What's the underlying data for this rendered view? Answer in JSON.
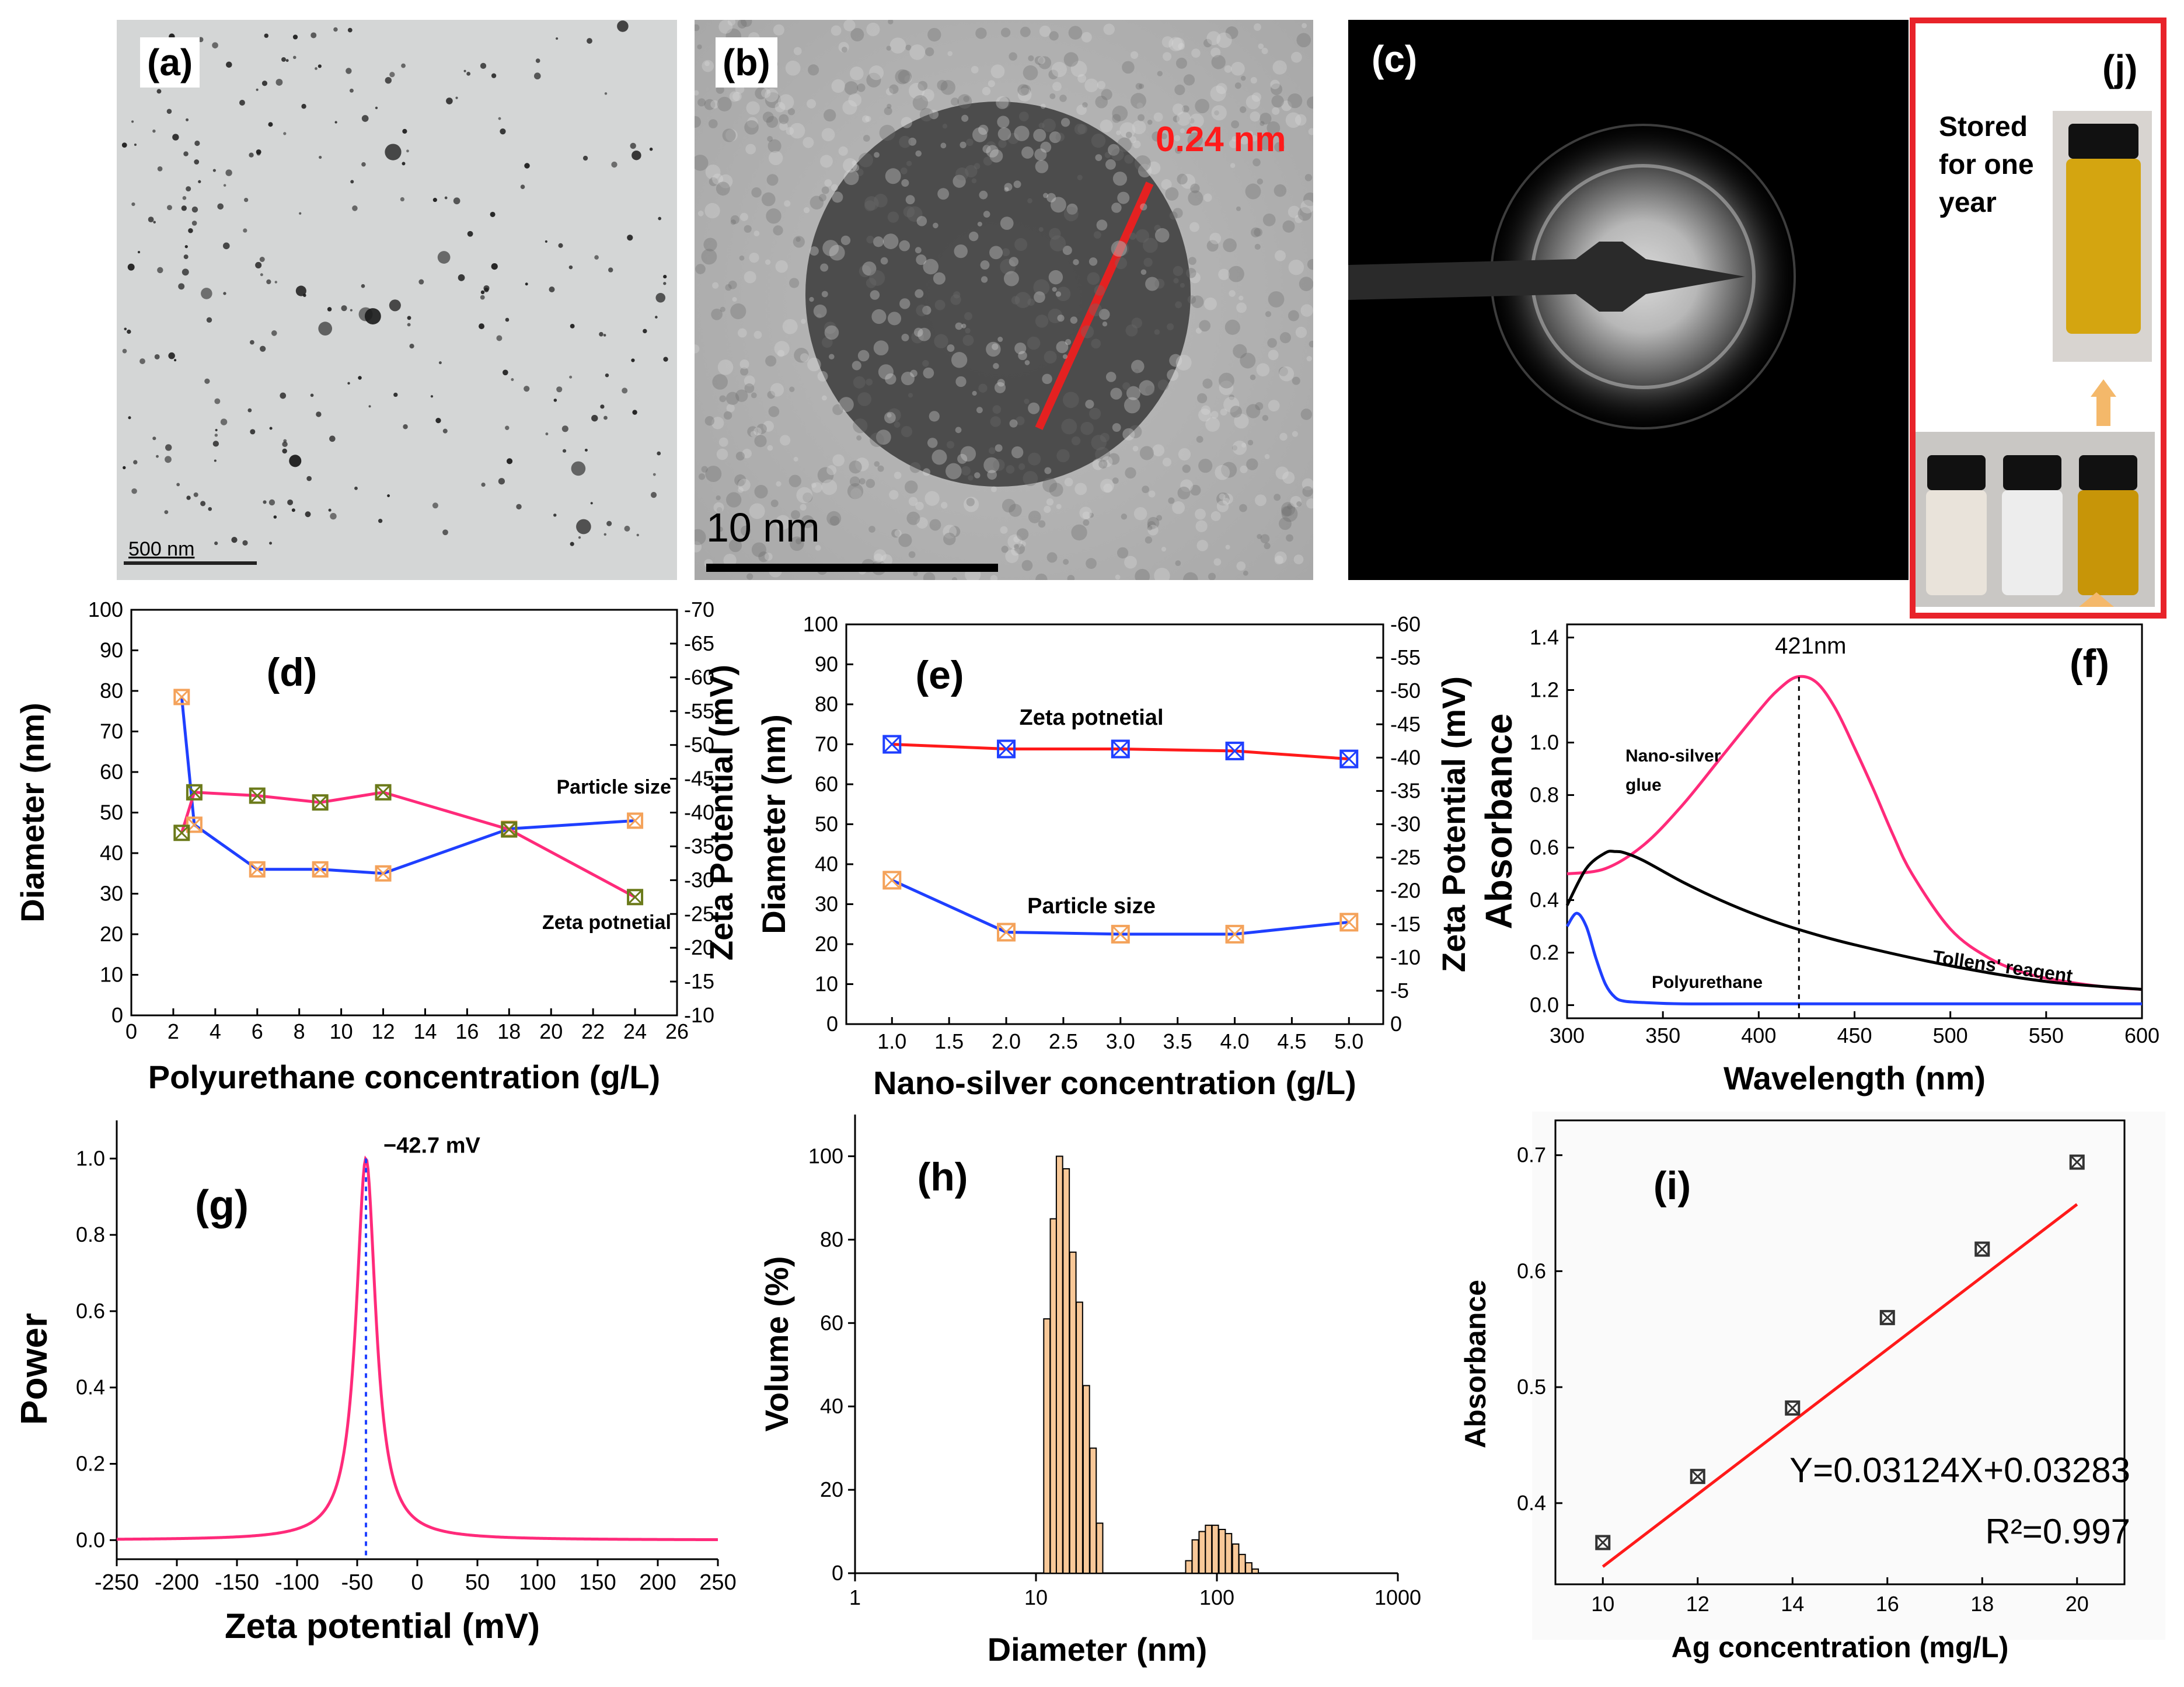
{
  "panels": {
    "a": {
      "label": "(a)",
      "scale": "500 nm"
    },
    "b": {
      "label": "(b)",
      "scale": "10 nm",
      "spacing": "0.24 nm"
    },
    "c": {
      "label": "(c)"
    },
    "j": {
      "label": "(j)",
      "caption_lines": [
        "Stored",
        "for one",
        "year"
      ]
    }
  },
  "colors": {
    "red": "#ff1a1a",
    "blue": "#1f3fff",
    "pink": "#ff2a7a",
    "orange": "#f4a25a",
    "olive": "#6b7a1a",
    "black": "#000000",
    "bar": "#f8c898"
  },
  "chart_data": [
    {
      "id": "d",
      "type": "line",
      "label": "(d)",
      "xlabel": "Polyurethane concentration (g/L)",
      "ylabel": "Diameter (nm)",
      "y2label": "Zeta Potential (mV)",
      "xlim": [
        0,
        26
      ],
      "xticks": [
        0,
        2,
        4,
        6,
        8,
        10,
        12,
        14,
        16,
        18,
        20,
        22,
        24,
        26
      ],
      "ylim": [
        0,
        100
      ],
      "yticks": [
        0,
        10,
        20,
        30,
        40,
        50,
        60,
        70,
        80,
        90,
        100
      ],
      "y2lim": [
        -10,
        -70
      ],
      "y2ticks": [
        -10,
        -15,
        -20,
        -25,
        -30,
        -35,
        -40,
        -45,
        -50,
        -55,
        -60,
        -65,
        -70
      ],
      "series": [
        {
          "name": "Particle size",
          "x": [
            2.4,
            3,
            6,
            9,
            12,
            18,
            24
          ],
          "values": [
            78.5,
            47,
            36,
            36,
            35,
            46,
            48
          ]
        },
        {
          "name": "Zeta potnetial",
          "x": [
            2.4,
            3,
            6,
            9,
            12,
            18,
            24
          ],
          "values": [
            -37,
            -43,
            -42.5,
            -41.5,
            -43,
            -37.5,
            -27.5
          ]
        }
      ]
    },
    {
      "id": "e",
      "type": "line",
      "label": "(e)",
      "xlabel": "Nano-silver concentration (g/L)",
      "ylabel": "Diameter (nm)",
      "y2label": "Zeta Potential (mV)",
      "xlim": [
        0.6,
        5.3
      ],
      "xticks": [
        "1.0",
        "1.5",
        "2.0",
        "2.5",
        "3.0",
        "3.5",
        "4.0",
        "4.5",
        "5.0"
      ],
      "ylim": [
        0,
        100
      ],
      "yticks": [
        0,
        10,
        20,
        30,
        40,
        50,
        60,
        70,
        80,
        90,
        100
      ],
      "y2lim": [
        0,
        -60
      ],
      "y2ticks": [
        0,
        -5,
        -10,
        -15,
        -20,
        -25,
        -30,
        -35,
        -40,
        -45,
        -50,
        -55,
        -60
      ],
      "series": [
        {
          "name": "Zeta potnetial",
          "x": [
            1,
            2,
            3,
            4,
            5
          ],
          "values": [
            -42,
            -41.3,
            -41.3,
            -41,
            -39.8
          ]
        },
        {
          "name": "Particle size",
          "x": [
            1,
            2,
            3,
            4,
            5
          ],
          "values": [
            36,
            23,
            22.5,
            22.5,
            25.5
          ]
        }
      ]
    },
    {
      "id": "f",
      "type": "line",
      "label": "(f)",
      "xlabel": "Wavelength (nm)",
      "ylabel": "Absorbance",
      "xlim": [
        300,
        600
      ],
      "xticks": [
        300,
        350,
        400,
        450,
        500,
        550,
        600
      ],
      "ylim": [
        -0.05,
        1.45
      ],
      "yticks": [
        "0.0",
        "0.2",
        "0.4",
        "0.6",
        "0.8",
        "1.0",
        "1.2",
        "1.4"
      ],
      "peak": {
        "x": 421,
        "y": 1.25,
        "label": "421nm"
      },
      "series": [
        {
          "name": "Nano-silver glue",
          "x": [
            300,
            320,
            340,
            360,
            380,
            400,
            410,
            420,
            430,
            440,
            450,
            460,
            470,
            480,
            500,
            520,
            540,
            560,
            580,
            600
          ],
          "values": [
            0.5,
            0.52,
            0.61,
            0.76,
            0.94,
            1.12,
            1.2,
            1.25,
            1.23,
            1.13,
            0.98,
            0.82,
            0.65,
            0.5,
            0.29,
            0.18,
            0.12,
            0.09,
            0.07,
            0.06
          ]
        },
        {
          "name": "Tollens' reagent",
          "x": [
            300,
            310,
            320,
            325,
            330,
            340,
            360,
            380,
            400,
            420,
            450,
            500,
            550,
            600
          ],
          "values": [
            0.38,
            0.52,
            0.58,
            0.585,
            0.58,
            0.55,
            0.47,
            0.4,
            0.34,
            0.29,
            0.23,
            0.15,
            0.09,
            0.06
          ]
        },
        {
          "name": "Polyurethane",
          "x": [
            300,
            305,
            310,
            315,
            320,
            325,
            330,
            340,
            360,
            400,
            500,
            600
          ],
          "values": [
            0.3,
            0.35,
            0.3,
            0.18,
            0.08,
            0.03,
            0.015,
            0.01,
            0.005,
            0.005,
            0.005,
            0.005
          ]
        }
      ]
    },
    {
      "id": "g",
      "type": "line",
      "label": "(g)",
      "xlabel": "Zeta potential (mV)",
      "ylabel": "Power",
      "xlim": [
        -250,
        250
      ],
      "xticks": [
        -250,
        -200,
        -150,
        -100,
        -50,
        0,
        50,
        100,
        150,
        200,
        250
      ],
      "ylim": [
        -0.05,
        1.1
      ],
      "yticks": [
        "0.0",
        "0.2",
        "0.4",
        "0.6",
        "0.8",
        "1.0"
      ],
      "peak": {
        "x": -42.7,
        "y": 1.0,
        "label": "−42.7 mV"
      },
      "series": [
        {
          "name": "Power",
          "x": [
            -42.7
          ],
          "values": [
            1.0
          ]
        }
      ]
    },
    {
      "id": "h",
      "type": "bar",
      "label": "(h)",
      "xlabel": "Diameter (nm)",
      "ylabel": "Volume (%)",
      "xscale": "log",
      "xlim": [
        1,
        1000
      ],
      "xticks": [
        "1",
        "10",
        "100",
        "1000"
      ],
      "ylim": [
        0,
        110
      ],
      "yticks": [
        0,
        20,
        40,
        60,
        80,
        100
      ],
      "x": [
        11.5,
        12.5,
        13.5,
        14.7,
        16,
        17.4,
        19,
        20.7,
        22.5,
        70,
        76,
        83,
        90,
        98,
        107,
        116,
        127,
        138,
        150,
        163
      ],
      "values": [
        61,
        85,
        100,
        97,
        77,
        65,
        45,
        30,
        12,
        3,
        8,
        10,
        11.5,
        11.5,
        10.5,
        9.5,
        7,
        4.5,
        2.5,
        1
      ]
    },
    {
      "id": "i",
      "type": "scatter",
      "label": "(i)",
      "xlabel": "Ag concentration (mg/L)",
      "ylabel": "Absorbance",
      "xlim": [
        9,
        21
      ],
      "xticks": [
        10,
        12,
        14,
        16,
        18,
        20
      ],
      "ylim": [
        0.33,
        0.73
      ],
      "yticks": [
        "0.4",
        "0.5",
        "0.6",
        "0.7"
      ],
      "equation": "Y=0.03124X+0.03283",
      "r2": "R²=0.997",
      "fit": {
        "slope": 0.03124,
        "intercept": 0.03283
      },
      "series": [
        {
          "name": "Absorbance",
          "x": [
            10,
            12,
            14,
            16,
            18,
            20
          ],
          "values": [
            0.366,
            0.423,
            0.482,
            0.56,
            0.619,
            0.694
          ]
        }
      ]
    }
  ]
}
